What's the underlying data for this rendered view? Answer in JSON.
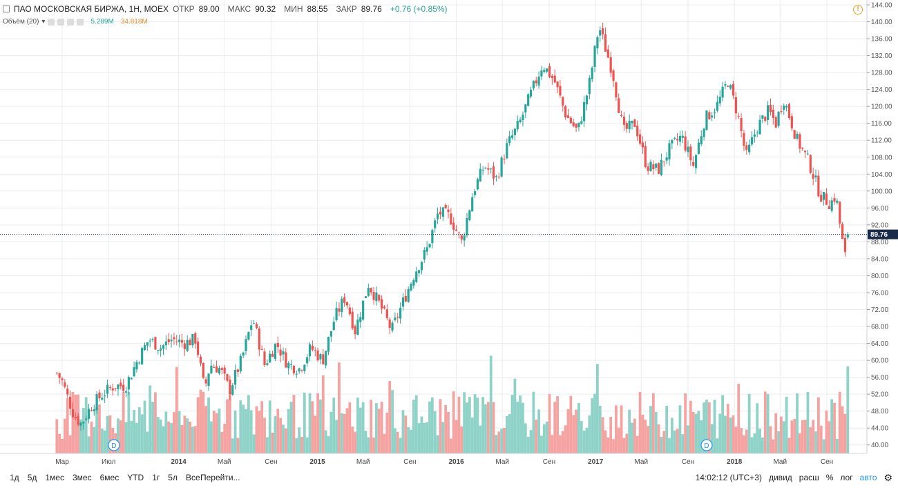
{
  "legend": {
    "symbol": "ПАО МОСКОВСКАЯ БИРЖА, 1Н, MOEX",
    "open_label": "ОТКР",
    "open": "89.00",
    "high_label": "МАКС",
    "high": "90.32",
    "low_label": "МИН",
    "low": "88.55",
    "close_label": "ЗАКР",
    "close": "89.76",
    "change": "+0.76 (+0.85%)"
  },
  "volume_legend": {
    "label": "Объём (20)",
    "value1": "5.289M",
    "value2": "34.818M"
  },
  "bottom_bar": {
    "periods": [
      "1д",
      "5д",
      "1мес",
      "3мес",
      "6мес",
      "YTD",
      "1г",
      "5л",
      "Все"
    ],
    "goto": "Перейти...",
    "time": "14:02:12 (UTC+3)",
    "dividends": "дивид",
    "extended": "расш",
    "percent": "%",
    "log": "лог",
    "auto": "авто"
  },
  "colors": {
    "up": "#26a69a",
    "down": "#ef5350",
    "up_vol": "#8fd3c8",
    "down_vol": "#f5a3a1",
    "grid": "#e9ecef",
    "price_line": "#1a2b4a"
  },
  "chart_data": {
    "type": "candlestick",
    "interval": "1 week",
    "y_axis_ticks": [
      40,
      44,
      48,
      52,
      56,
      60,
      64,
      68,
      72,
      76,
      80,
      84,
      88,
      92,
      96,
      100,
      104,
      108,
      112,
      116,
      120,
      124,
      128,
      132,
      136,
      140,
      144
    ],
    "ylim": [
      38,
      145
    ],
    "x_axis_labels": [
      "Мар",
      "Июл",
      "2014",
      "Май",
      "Сен",
      "2015",
      "Май",
      "Сен",
      "2016",
      "Май",
      "Сен",
      "2017",
      "Май",
      "Сен",
      "2018",
      "Май",
      "Сен"
    ],
    "x_axis_label_dates": [
      "2013-03-01",
      "2013-07-01",
      "2014-01-01",
      "2014-05-01",
      "2014-09-01",
      "2015-01-01",
      "2015-05-01",
      "2015-09-01",
      "2016-01-01",
      "2016-05-01",
      "2016-09-01",
      "2017-01-01",
      "2017-05-01",
      "2017-09-01",
      "2018-01-01",
      "2018-05-01",
      "2018-09-01"
    ],
    "last_price": 89.76,
    "dividend_markers": [
      {
        "label": "D",
        "date": "2013-07-15"
      },
      {
        "label": "D",
        "date": "2017-10-20"
      }
    ],
    "close_path": [
      {
        "date": "2013-02-15",
        "close": 57
      },
      {
        "date": "2013-03-01",
        "close": 55
      },
      {
        "date": "2013-04-01",
        "close": 47
      },
      {
        "date": "2013-04-20",
        "close": 45
      },
      {
        "date": "2013-05-15",
        "close": 49
      },
      {
        "date": "2013-06-15",
        "close": 52
      },
      {
        "date": "2013-07-15",
        "close": 54
      },
      {
        "date": "2013-08-15",
        "close": 54
      },
      {
        "date": "2013-09-15",
        "close": 60
      },
      {
        "date": "2013-10-15",
        "close": 65
      },
      {
        "date": "2013-11-15",
        "close": 63
      },
      {
        "date": "2013-12-15",
        "close": 65
      },
      {
        "date": "2014-01-15",
        "close": 64
      },
      {
        "date": "2014-02-15",
        "close": 65
      },
      {
        "date": "2014-03-10",
        "close": 53
      },
      {
        "date": "2014-03-25",
        "close": 59
      },
      {
        "date": "2014-04-20",
        "close": 58
      },
      {
        "date": "2014-05-15",
        "close": 53
      },
      {
        "date": "2014-06-15",
        "close": 60
      },
      {
        "date": "2014-07-15",
        "close": 70
      },
      {
        "date": "2014-08-15",
        "close": 59
      },
      {
        "date": "2014-09-15",
        "close": 64
      },
      {
        "date": "2014-10-15",
        "close": 59
      },
      {
        "date": "2014-11-15",
        "close": 58
      },
      {
        "date": "2014-12-15",
        "close": 63
      },
      {
        "date": "2015-01-15",
        "close": 60
      },
      {
        "date": "2015-02-15",
        "close": 70
      },
      {
        "date": "2015-03-15",
        "close": 75
      },
      {
        "date": "2015-04-10",
        "close": 67
      },
      {
        "date": "2015-05-15",
        "close": 78
      },
      {
        "date": "2015-06-15",
        "close": 73
      },
      {
        "date": "2015-07-15",
        "close": 67
      },
      {
        "date": "2015-08-15",
        "close": 74
      },
      {
        "date": "2015-09-15",
        "close": 81
      },
      {
        "date": "2015-10-15",
        "close": 86
      },
      {
        "date": "2015-11-15",
        "close": 95
      },
      {
        "date": "2015-12-15",
        "close": 94
      },
      {
        "date": "2016-01-15",
        "close": 88
      },
      {
        "date": "2016-02-15",
        "close": 100
      },
      {
        "date": "2016-03-15",
        "close": 106
      },
      {
        "date": "2016-04-15",
        "close": 103
      },
      {
        "date": "2016-05-15",
        "close": 111
      },
      {
        "date": "2016-06-15",
        "close": 116
      },
      {
        "date": "2016-07-15",
        "close": 123
      },
      {
        "date": "2016-08-15",
        "close": 130
      },
      {
        "date": "2016-09-15",
        "close": 126
      },
      {
        "date": "2016-10-15",
        "close": 118
      },
      {
        "date": "2016-11-15",
        "close": 114
      },
      {
        "date": "2016-12-15",
        "close": 125
      },
      {
        "date": "2017-01-10",
        "close": 139
      },
      {
        "date": "2017-02-15",
        "close": 128
      },
      {
        "date": "2017-03-15",
        "close": 114
      },
      {
        "date": "2017-04-15",
        "close": 116
      },
      {
        "date": "2017-05-15",
        "close": 106
      },
      {
        "date": "2017-06-15",
        "close": 105
      },
      {
        "date": "2017-07-15",
        "close": 110
      },
      {
        "date": "2017-08-15",
        "close": 113
      },
      {
        "date": "2017-09-15",
        "close": 106
      },
      {
        "date": "2017-10-15",
        "close": 117
      },
      {
        "date": "2017-11-15",
        "close": 120
      },
      {
        "date": "2017-12-15",
        "close": 126
      },
      {
        "date": "2018-01-10",
        "close": 118
      },
      {
        "date": "2018-02-01",
        "close": 108
      },
      {
        "date": "2018-03-01",
        "close": 115
      },
      {
        "date": "2018-04-01",
        "close": 119
      },
      {
        "date": "2018-04-20",
        "close": 116
      },
      {
        "date": "2018-05-10",
        "close": 122
      },
      {
        "date": "2018-06-15",
        "close": 112
      },
      {
        "date": "2018-07-15",
        "close": 107
      },
      {
        "date": "2018-08-15",
        "close": 99
      },
      {
        "date": "2018-09-10",
        "close": 97
      },
      {
        "date": "2018-09-25",
        "close": 99
      },
      {
        "date": "2018-10-10",
        "close": 89
      },
      {
        "date": "2018-10-20",
        "close": 84
      },
      {
        "date": "2018-10-30",
        "close": 89.76
      }
    ]
  }
}
